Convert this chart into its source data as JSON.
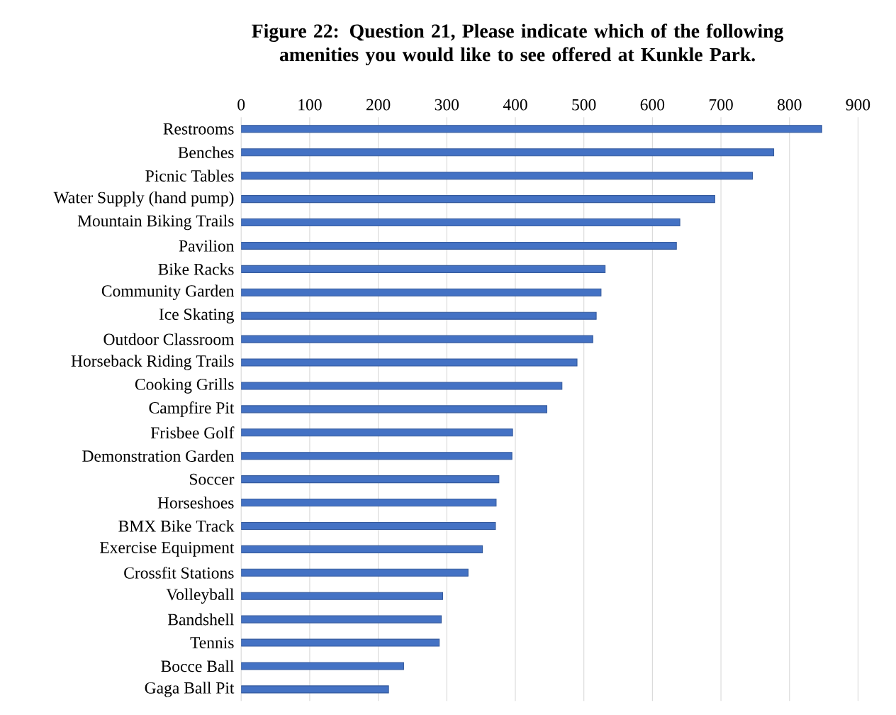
{
  "chart_data": {
    "type": "bar",
    "orientation": "horizontal",
    "title": "Figure 22: Question 21, Please indicate which of the following amenities you would like to see offered at Kunkle Park.",
    "categories": [
      "Restrooms",
      "Benches",
      "Picnic Tables",
      "Water Supply (hand pump)",
      "Mountain Biking Trails",
      "Pavilion",
      "Bike Racks",
      "Community Garden",
      "Ice Skating",
      "Outdoor Classroom",
      "Horseback Riding Trails",
      "Cooking Grills",
      "Campfire Pit",
      "Frisbee Golf",
      "Demonstration Garden",
      "Soccer",
      "Horseshoes",
      "BMX Bike Track",
      "Exercise Equipment",
      "Crossfit Stations",
      "Volleyball",
      "Bandshell",
      "Tennis",
      "Bocce Ball",
      "Gaga Ball Pit"
    ],
    "values": [
      847,
      777,
      746,
      691,
      640,
      635,
      531,
      525,
      518,
      513,
      490,
      468,
      446,
      396,
      395,
      376,
      372,
      371,
      352,
      331,
      294,
      292,
      289,
      237,
      215
    ],
    "color": "#4472c4",
    "xlim": [
      0,
      900
    ],
    "xticks": [
      0,
      100,
      200,
      300,
      400,
      500,
      600,
      700,
      800,
      900
    ],
    "grid": "x"
  }
}
